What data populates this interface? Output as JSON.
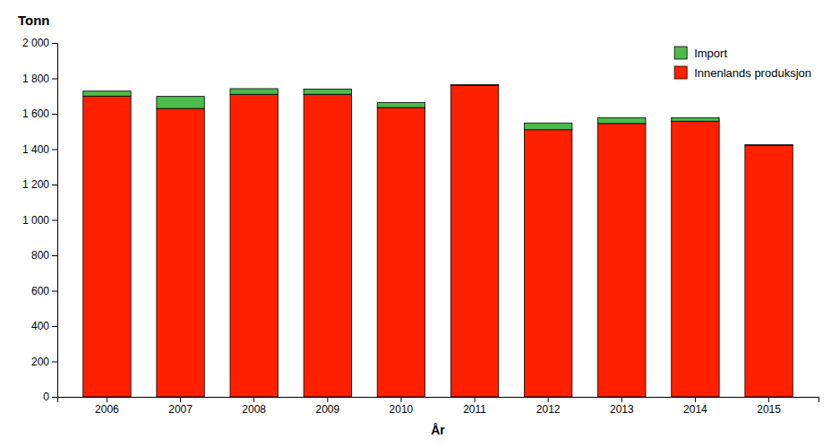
{
  "chart_data": {
    "type": "bar",
    "stacked": true,
    "xlabel": "År",
    "ylabel": "Tonn",
    "categories": [
      "2006",
      "2007",
      "2008",
      "2009",
      "2010",
      "2011",
      "2012",
      "2013",
      "2014",
      "2015"
    ],
    "series": [
      {
        "name": "Innenlands produksjon",
        "color": "#FF2000",
        "values": [
          1700,
          1630,
          1710,
          1710,
          1635,
          1760,
          1510,
          1545,
          1558,
          1420
        ]
      },
      {
        "name": "Import",
        "color": "#4CBB4C",
        "values": [
          28,
          68,
          32,
          30,
          28,
          5,
          38,
          32,
          20,
          5
        ]
      }
    ],
    "ylim": [
      0,
      2000
    ],
    "yticks": [
      0,
      200,
      400,
      600,
      800,
      {
        "value": 1000,
        "label": "1 000"
      },
      {
        "value": 1200,
        "label": "1 200"
      },
      {
        "value": 1400,
        "label": "1 400"
      },
      {
        "value": 1600,
        "label": "1 600"
      },
      {
        "value": 1800,
        "label": "1 800"
      },
      {
        "value": 2000,
        "label": "2 000"
      }
    ],
    "grid": false,
    "legend": "upper right"
  }
}
